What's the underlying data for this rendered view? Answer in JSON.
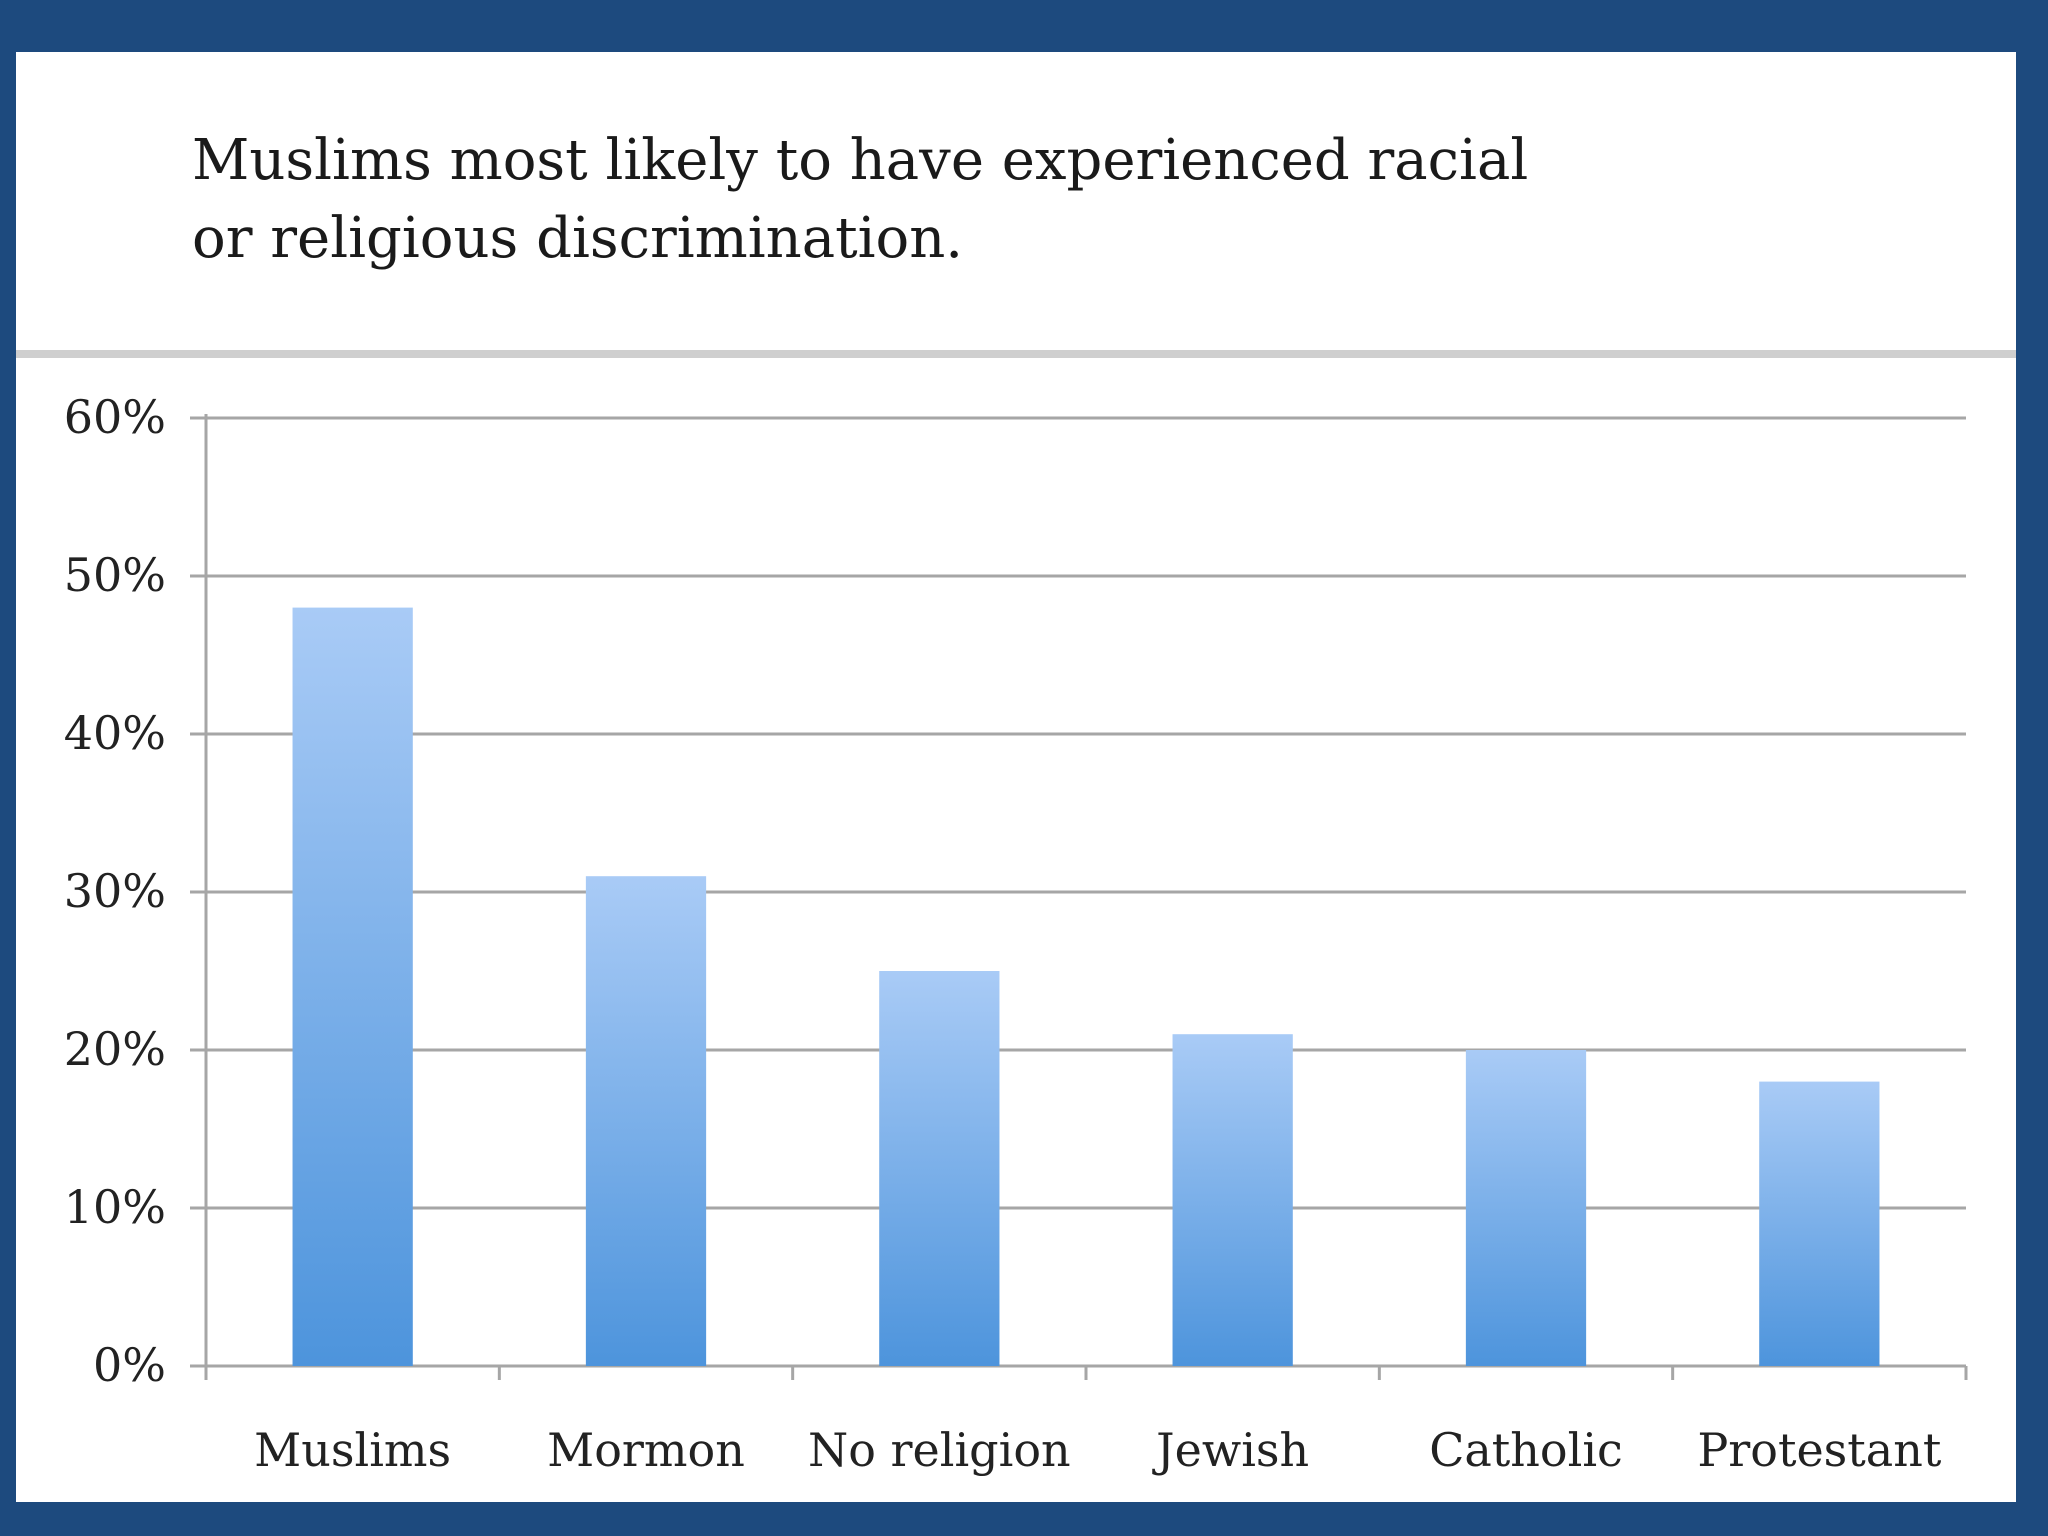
{
  "chart_data": {
    "type": "bar",
    "title_lines": [
      "Muslims most likely to have experienced racial",
      "or religious discrimination."
    ],
    "categories": [
      "Muslims",
      "Mormon",
      "No religion",
      "Jewish",
      "Catholic",
      "Protestant"
    ],
    "values": [
      48,
      31,
      25,
      21,
      20,
      18
    ],
    "yticks": [
      {
        "value": 0,
        "label": "0%"
      },
      {
        "value": 10,
        "label": "10%"
      },
      {
        "value": 20,
        "label": "20%"
      },
      {
        "value": 30,
        "label": "30%"
      },
      {
        "value": 40,
        "label": "40%"
      },
      {
        "value": 50,
        "label": "50%"
      },
      {
        "value": 60,
        "label": "60%"
      }
    ],
    "ylim": [
      0,
      60
    ],
    "grid": true,
    "bar_color_top": "#a9cbf6",
    "bar_color_bottom": "#4d94dc"
  },
  "colors": {
    "frame_border": "#1d4a7e",
    "gridline": "#a6a6a6"
  }
}
